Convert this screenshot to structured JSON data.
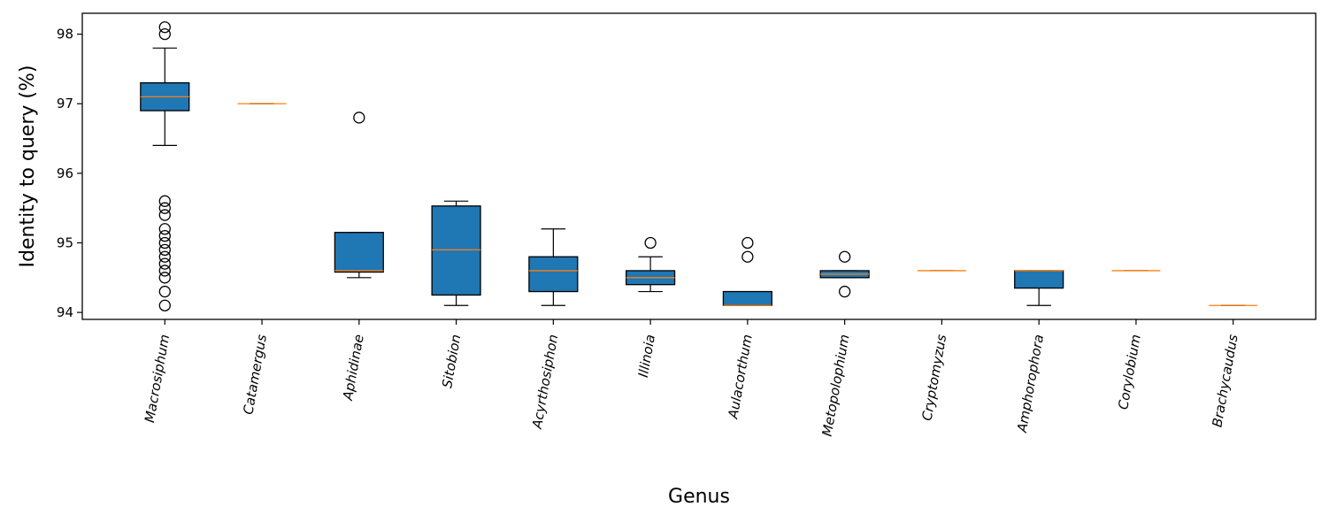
{
  "chart_data": {
    "type": "box",
    "title": "",
    "xlabel": "Genus",
    "ylabel": "Identity to query (%)",
    "ylim": [
      93.9,
      98.3
    ],
    "yticks": [
      94,
      95,
      96,
      97,
      98
    ],
    "grid": false,
    "legend": "none",
    "colors": {
      "box_fill": "#1f77b4",
      "median": "#ff7f0e",
      "edge": "#000000"
    },
    "categories": [
      "Macrosiphum",
      "Catamergus",
      "Aphidinae",
      "Sitobion",
      "Acyrthosiphon",
      "Illinoia",
      "Aulacorthum",
      "Metopolophium",
      "Cryptomyzus",
      "Amphorophora",
      "Corylobium",
      "Brachycaudus"
    ],
    "boxes": [
      {
        "whislo": 96.4,
        "q1": 96.9,
        "med": 97.1,
        "q3": 97.3,
        "whishi": 97.8,
        "fliers": [
          98.1,
          98.0,
          95.6,
          95.5,
          95.4,
          95.2,
          95.1,
          95.0,
          94.9,
          94.8,
          94.7,
          94.6,
          94.5,
          94.3,
          94.1
        ]
      },
      {
        "whislo": 97.0,
        "q1": 97.0,
        "med": 97.0,
        "q3": 97.0,
        "whishi": 97.0,
        "fliers": []
      },
      {
        "whislo": 94.5,
        "q1": 94.58,
        "med": 94.6,
        "q3": 95.15,
        "whishi": 95.15,
        "fliers": [
          96.8
        ]
      },
      {
        "whislo": 94.1,
        "q1": 94.25,
        "med": 94.9,
        "q3": 95.53,
        "whishi": 95.6,
        "fliers": []
      },
      {
        "whislo": 94.1,
        "q1": 94.3,
        "med": 94.6,
        "q3": 94.8,
        "whishi": 95.2,
        "fliers": []
      },
      {
        "whislo": 94.3,
        "q1": 94.4,
        "med": 94.5,
        "q3": 94.6,
        "whishi": 94.8,
        "fliers": [
          95.0
        ]
      },
      {
        "whislo": 94.1,
        "q1": 94.1,
        "med": 94.1,
        "q3": 94.3,
        "whishi": 94.3,
        "fliers": [
          95.0,
          94.8
        ]
      },
      {
        "whislo": 94.5,
        "q1": 94.5,
        "med": 94.55,
        "q3": 94.6,
        "whishi": 94.6,
        "fliers": [
          94.8,
          94.3
        ]
      },
      {
        "whislo": 94.6,
        "q1": 94.6,
        "med": 94.6,
        "q3": 94.6,
        "whishi": 94.6,
        "fliers": []
      },
      {
        "whislo": 94.1,
        "q1": 94.35,
        "med": 94.6,
        "q3": 94.6,
        "whishi": 94.6,
        "fliers": []
      },
      {
        "whislo": 94.6,
        "q1": 94.6,
        "med": 94.6,
        "q3": 94.6,
        "whishi": 94.6,
        "fliers": []
      },
      {
        "whislo": 94.1,
        "q1": 94.1,
        "med": 94.1,
        "q3": 94.1,
        "whishi": 94.1,
        "fliers": []
      }
    ]
  }
}
